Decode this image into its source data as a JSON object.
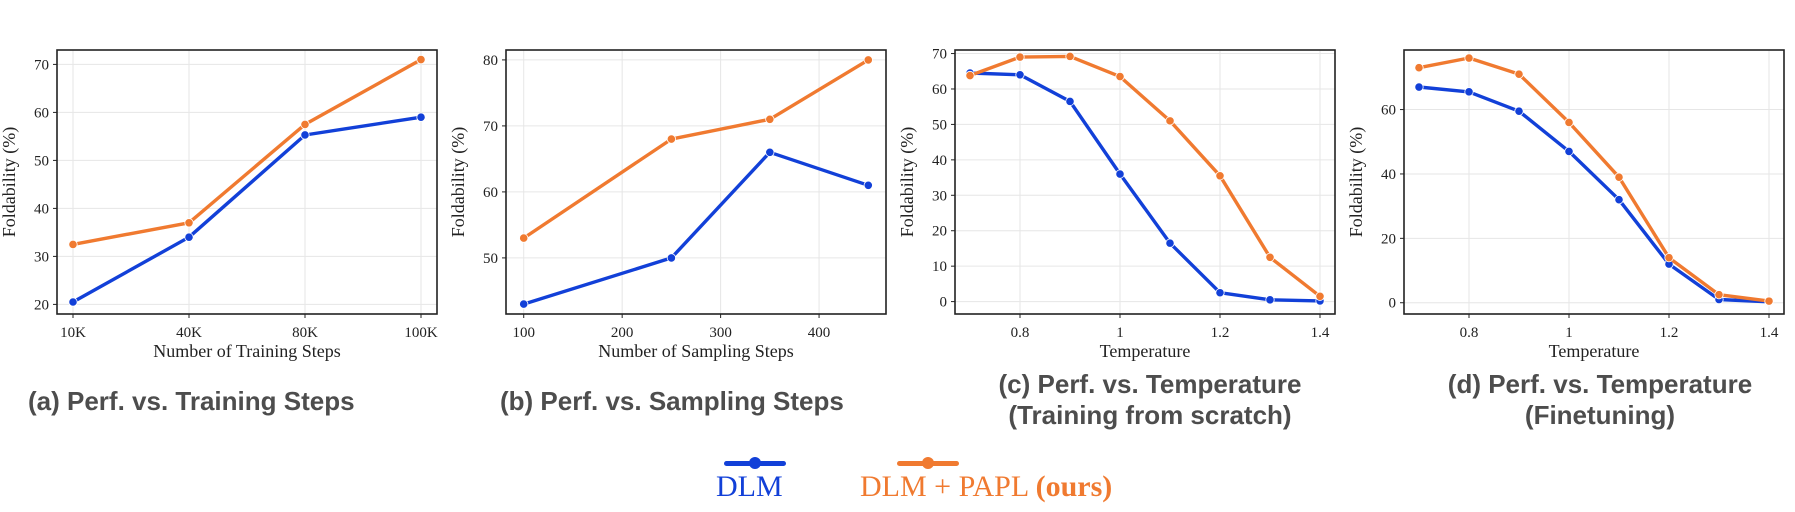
{
  "colors": {
    "dlm": "#1240d8",
    "papl": "#f07a30",
    "axis": "#222222",
    "grid": "#e6e6e6"
  },
  "legend": {
    "dlm_label": "DLM",
    "papl_label": "DLM + PAPL",
    "papl_suffix": "(ours)"
  },
  "chart_data": [
    {
      "type": "line",
      "caption": [
        "(a) Perf. vs. Training Steps"
      ],
      "xlabel": "Number of Training Steps",
      "ylabel": "Foldability (%)",
      "categories": [
        "10K",
        "40K",
        "80K",
        "100K"
      ],
      "ylim": [
        18,
        73
      ],
      "yticks": [
        20,
        30,
        40,
        50,
        60,
        70
      ],
      "grid": true,
      "series": [
        {
          "name": "DLM",
          "values": [
            20.5,
            34,
            55.3,
            59
          ]
        },
        {
          "name": "DLM + PAPL",
          "values": [
            32.5,
            37,
            57.5,
            71
          ]
        }
      ]
    },
    {
      "type": "line",
      "caption": [
        "(b) Perf. vs. Sampling Steps"
      ],
      "xlabel": "Number of Sampling Steps",
      "ylabel": "Foldability (%)",
      "x": [
        100,
        250,
        350,
        450
      ],
      "xlim": [
        82,
        468
      ],
      "xticks": [
        100,
        200,
        300,
        400
      ],
      "ylim": [
        41.5,
        81.5
      ],
      "yticks": [
        50,
        60,
        70,
        80
      ],
      "grid": true,
      "series": [
        {
          "name": "DLM",
          "values": [
            43,
            50,
            66,
            61
          ]
        },
        {
          "name": "DLM + PAPL",
          "values": [
            53,
            68,
            71,
            80
          ]
        }
      ]
    },
    {
      "type": "line",
      "caption": [
        "(c) Perf. vs. Temperature",
        "(Training from scratch)"
      ],
      "xlabel": "Temperature",
      "ylabel": "Foldability (%)",
      "x": [
        0.7,
        0.8,
        0.9,
        1.0,
        1.1,
        1.2,
        1.3,
        1.4
      ],
      "xlim": [
        0.67,
        1.43
      ],
      "xticks": [
        0.8,
        1.0,
        1.2,
        1.4
      ],
      "ylim": [
        -3.5,
        71
      ],
      "yticks": [
        0,
        10,
        20,
        30,
        40,
        50,
        60,
        70
      ],
      "grid": true,
      "series": [
        {
          "name": "DLM",
          "values": [
            64.5,
            64,
            56.5,
            36,
            16.5,
            2.5,
            0.5,
            0.2
          ]
        },
        {
          "name": "DLM + PAPL",
          "values": [
            63.8,
            69,
            69.2,
            63.5,
            51,
            35.5,
            12.5,
            1.5
          ]
        }
      ]
    },
    {
      "type": "line",
      "caption": [
        "(d) Perf. vs. Temperature",
        "(Finetuning)"
      ],
      "xlabel": "Temperature",
      "ylabel": "Foldability (%)",
      "x": [
        0.7,
        0.8,
        0.9,
        1.0,
        1.1,
        1.2,
        1.3,
        1.4
      ],
      "xlim": [
        0.67,
        1.43
      ],
      "xticks": [
        0.8,
        1.0,
        1.2,
        1.4
      ],
      "ylim": [
        -3.5,
        78.5
      ],
      "yticks": [
        0,
        20,
        40,
        60
      ],
      "grid": true,
      "series": [
        {
          "name": "DLM",
          "values": [
            67,
            65.5,
            59.5,
            47,
            32,
            12,
            1,
            0.3
          ]
        },
        {
          "name": "DLM + PAPL",
          "values": [
            73,
            76,
            71,
            56,
            39,
            14,
            2.5,
            0.5
          ]
        }
      ]
    }
  ]
}
